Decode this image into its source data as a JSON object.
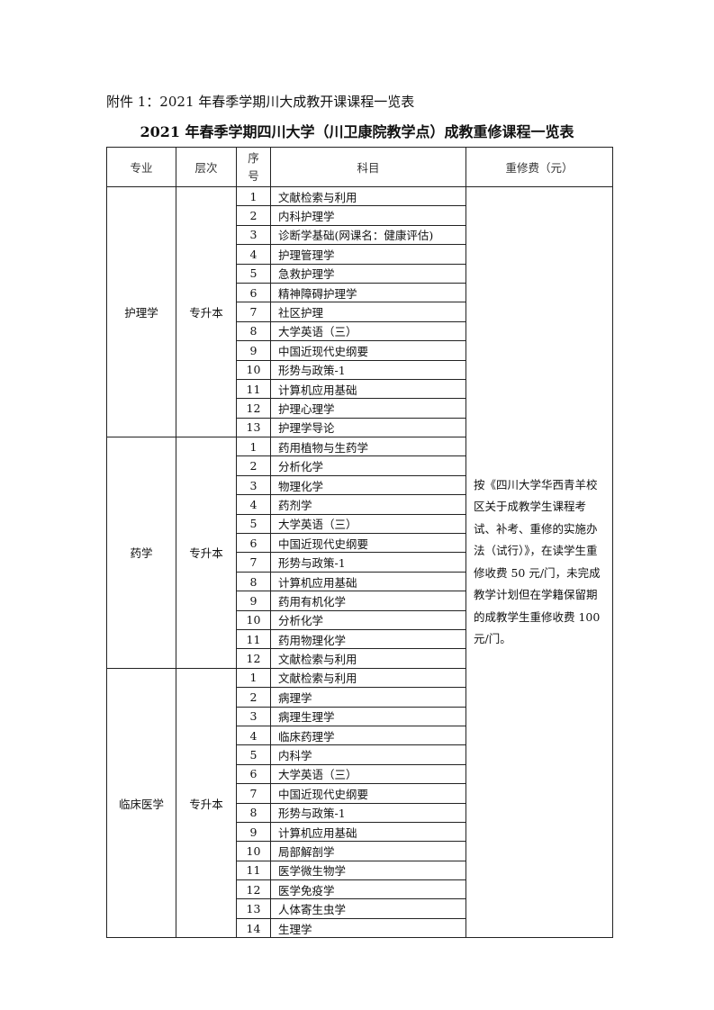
{
  "attachment_title": "附件 1：2021 年春季学期川大成教开课课程一览表",
  "table_title": "2021 年春季学期四川大学（川卫康院教学点）成教重修课程一览表",
  "headers": {
    "major": "专业",
    "level": "层次",
    "seq_line1": "序",
    "seq_line2": "号",
    "course": "科目",
    "fee": "重修费（元）"
  },
  "fee_note": "按《四川大学华西青羊校区关于成教学生课程考试、补考、重修的实施办法（试行）》，在读学生重修收费 50 元/门，未完成教学计划但在学籍保留期的成教学生重修收费 100 元/门。",
  "groups": [
    {
      "major": "护理学",
      "level": "专升本",
      "courses": [
        "文献检索与利用",
        "内科护理学",
        "诊断学基础(网课名：健康评估)",
        "护理管理学",
        "急救护理学",
        "精神障碍护理学",
        "社区护理",
        "大学英语（三）",
        "中国近现代史纲要",
        "形势与政策-1",
        "计算机应用基础",
        "护理心理学",
        "护理学导论"
      ]
    },
    {
      "major": "药学",
      "level": "专升本",
      "courses": [
        "药用植物与生药学",
        "分析化学",
        "物理化学",
        "药剂学",
        "大学英语（三）",
        "中国近现代史纲要",
        "形势与政策-1",
        "计算机应用基础",
        "药用有机化学",
        "分析化学",
        "药用物理化学",
        "文献检索与利用"
      ]
    },
    {
      "major": "临床医学",
      "level": "专升本",
      "courses": [
        "文献检索与利用",
        "病理学",
        "病理生理学",
        "临床药理学",
        "内科学",
        "大学英语（三）",
        "中国近现代史纲要",
        "形势与政策-1",
        "计算机应用基础",
        "局部解剖学",
        "医学微生物学",
        "医学免疫学",
        "人体寄生虫学",
        "生理学"
      ]
    }
  ]
}
